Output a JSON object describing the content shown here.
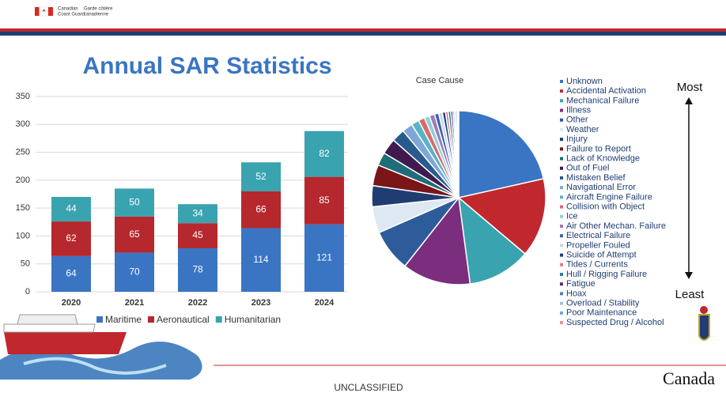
{
  "slide": {
    "title": "Annual SAR Statistics",
    "fip_en": [
      "Canadian",
      "Coast Guard"
    ],
    "fip_fr": [
      "Garde côtière",
      "canadienne"
    ],
    "most": "Most",
    "least": "Least",
    "classification": "UNCLASSIFIED",
    "wordmark": "Canada"
  },
  "chart_data": [
    {
      "type": "bar",
      "stacked": true,
      "categories": [
        "2020",
        "2021",
        "2022",
        "2023",
        "2024"
      ],
      "series": [
        {
          "name": "Maritime",
          "color": "#3a75c4",
          "values": [
            64,
            70,
            78,
            114,
            121
          ]
        },
        {
          "name": "Aeronautical",
          "color": "#b5282d",
          "values": [
            62,
            65,
            45,
            66,
            85
          ]
        },
        {
          "name": "Humanitarian",
          "color": "#3aa3b0",
          "values": [
            44,
            50,
            34,
            52,
            82
          ]
        }
      ],
      "ylim": [
        0,
        350
      ],
      "yticks": [
        0,
        50,
        100,
        150,
        200,
        250,
        300,
        350
      ],
      "grid": true,
      "legend": "bottom"
    },
    {
      "type": "pie",
      "title": "Case Cause",
      "legend": "right",
      "categories": [
        "Unknown",
        "Accidental Activation",
        "Mechanical Failure",
        "Illness",
        "Other",
        "Weather",
        "Injury",
        "Failure to Report",
        "Lack of Knowledge",
        "Out of Fuel",
        "Mistaken Belief",
        "Navigational Error",
        "Aircraft Engine Failure",
        "Collision with Object",
        "Ice",
        "Air Other Mechan. Failure",
        "Electrical Failure",
        "Propeller Fouled",
        "Suicide of Attempt",
        "Tides / Currents",
        "Hull / Rigging Failure",
        "Fatigue",
        "Hoax",
        "Overload / Stability",
        "Poor Maintenance",
        "Suspected Drug / Alcohol"
      ],
      "values": [
        22,
        15,
        12,
        13,
        8,
        5,
        4,
        4,
        2.5,
        3,
        2.5,
        2,
        1.5,
        1.2,
        1,
        1,
        0.8,
        0.7,
        0.6,
        0.5,
        0.5,
        0.4,
        0.3,
        0.3,
        0.3,
        0.2
      ],
      "colors": [
        "#3a75c4",
        "#c0282d",
        "#3aa3b0",
        "#7b2d7e",
        "#2e5c9a",
        "#dde8f2",
        "#1f3d72",
        "#7a1518",
        "#1f6d78",
        "#3f1a4f",
        "#285a8e",
        "#7fa6d6",
        "#5ab4c6",
        "#d86a6c",
        "#8fd0d8",
        "#9e7bb8",
        "#3a64b0",
        "#c9d7ea",
        "#1e3f86",
        "#e07e7e",
        "#2e7fa0",
        "#5b2d6e",
        "#4f7fc0",
        "#9bc0e8",
        "#6fa3d8",
        "#e89090"
      ]
    }
  ]
}
